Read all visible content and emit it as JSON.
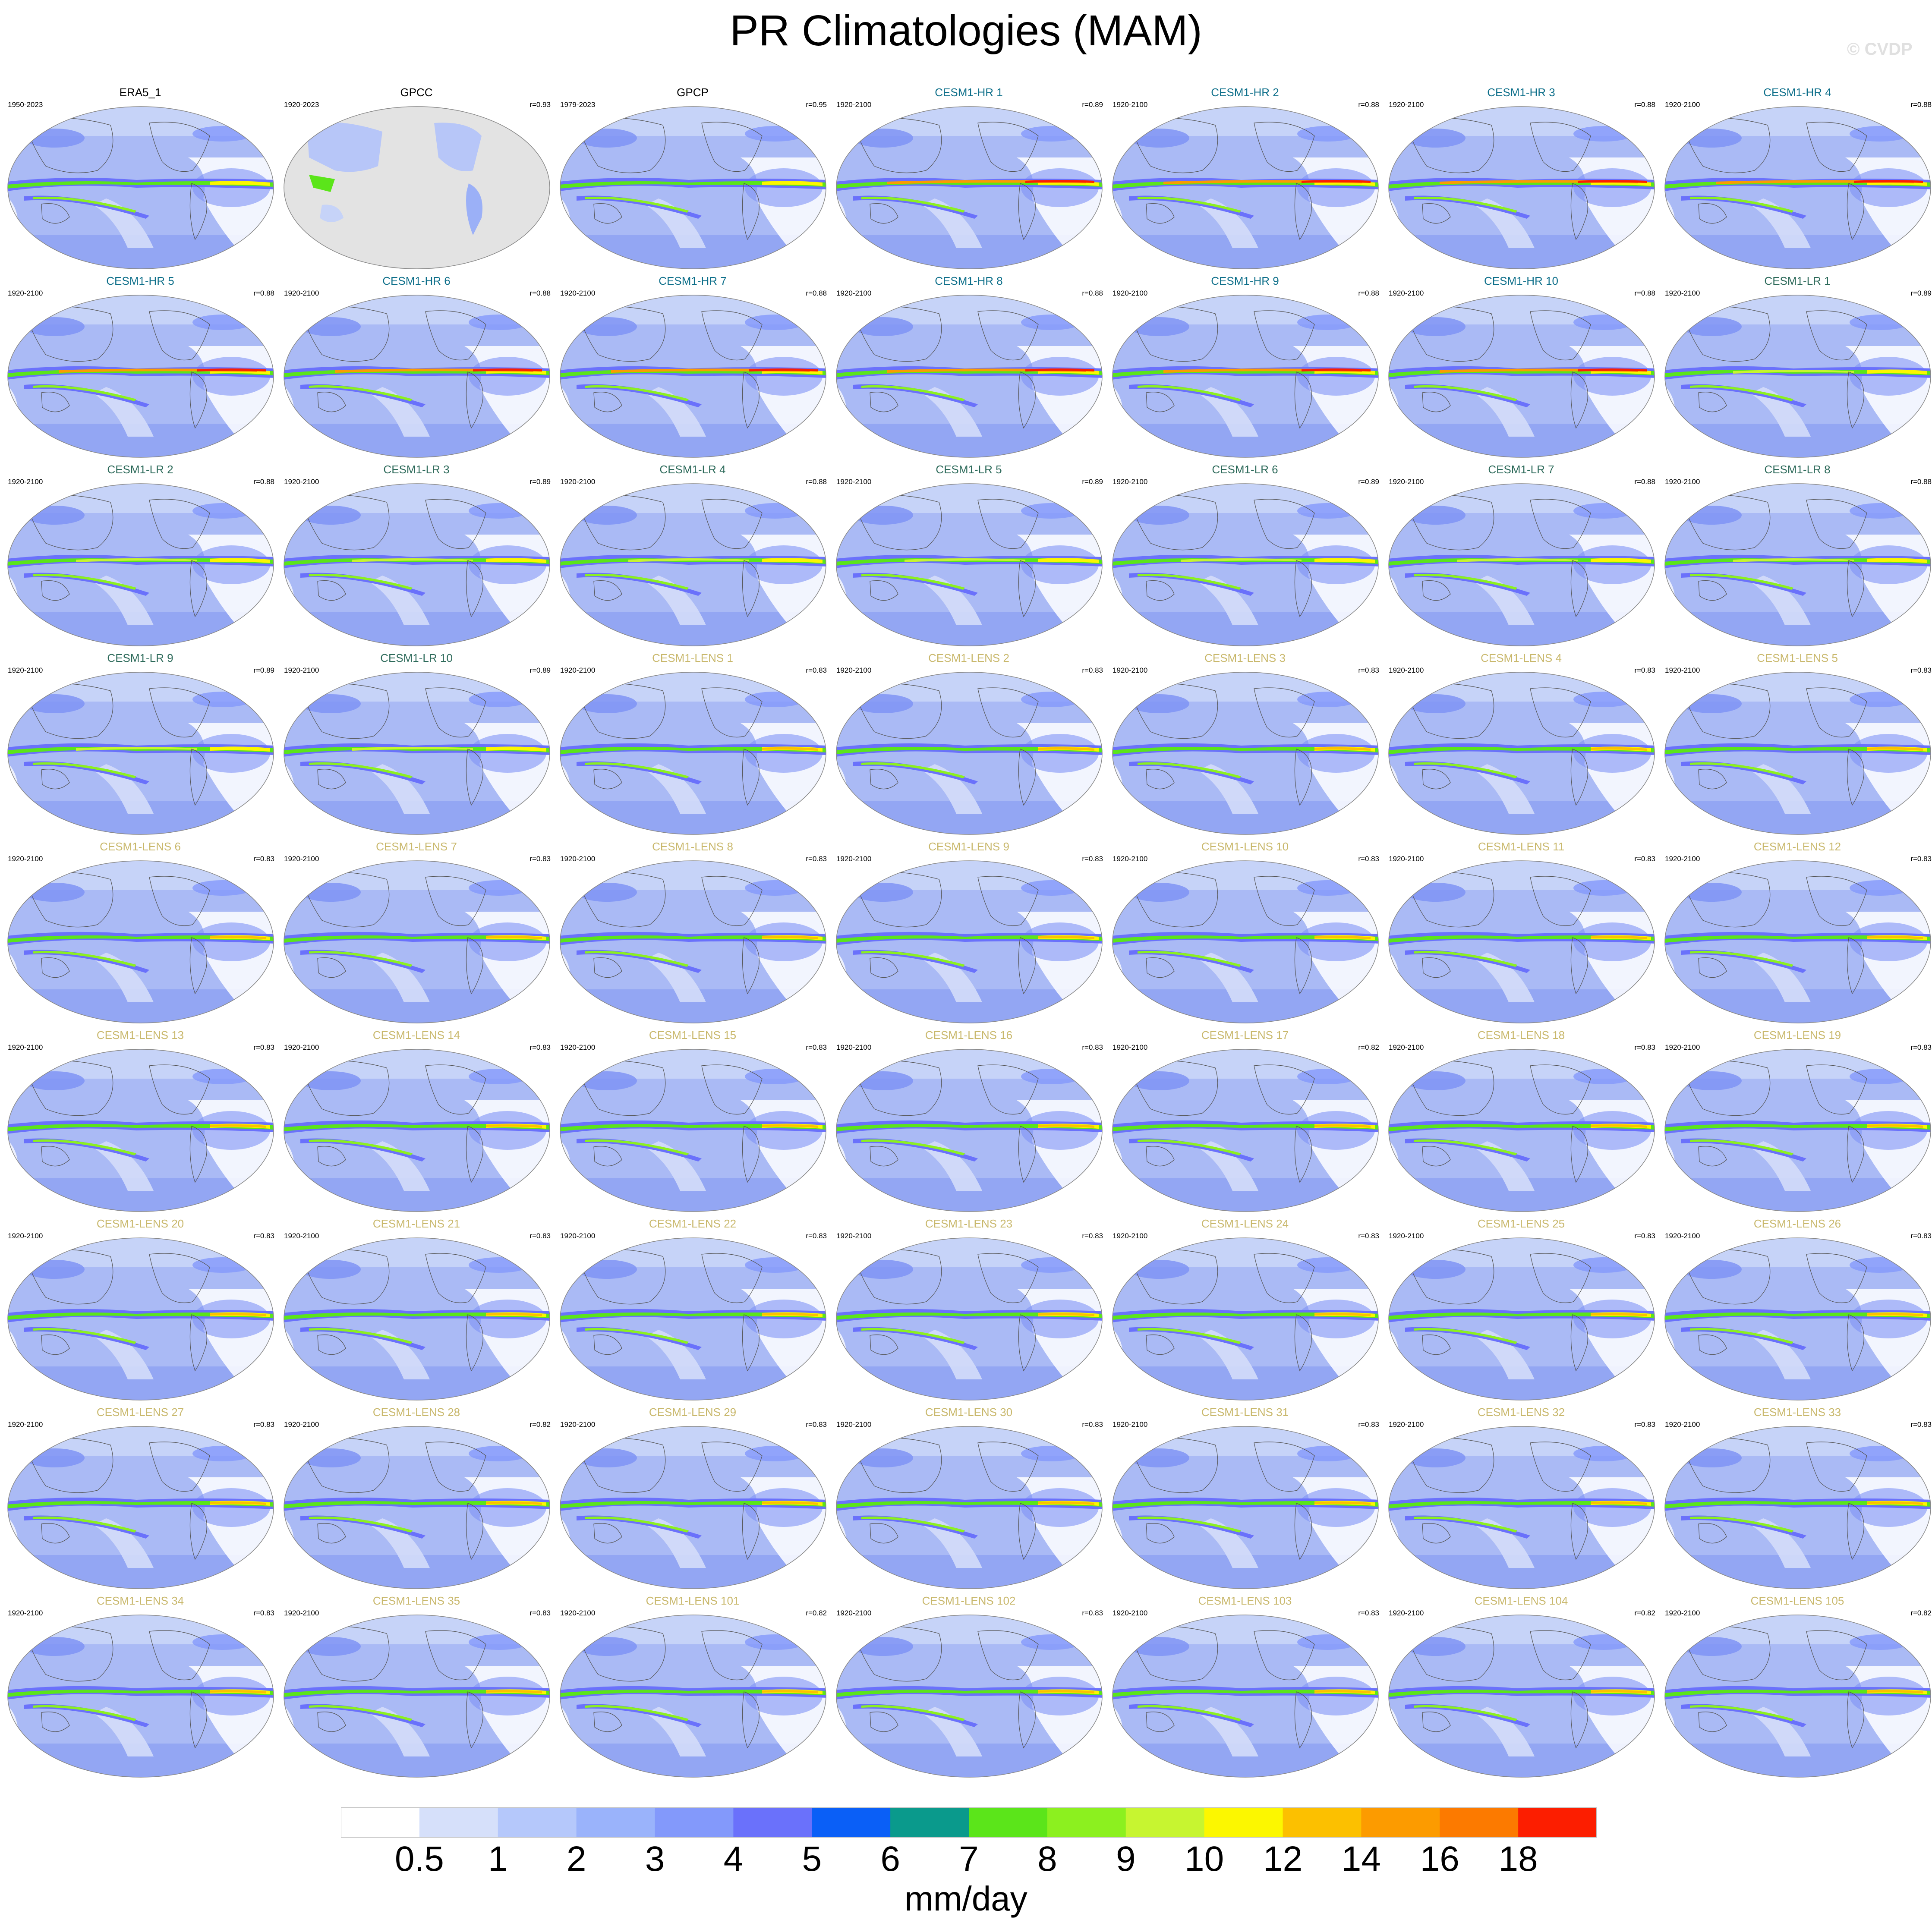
{
  "title": "PR Climatologies (MAM)",
  "credit": "© CVDP",
  "units": "mm/day",
  "chart_data": {
    "type": "heatmap",
    "title": "PR Climatologies (MAM)",
    "colorbar": {
      "label": "mm/day",
      "levels": [
        "0.5",
        "1",
        "2",
        "3",
        "4",
        "5",
        "6",
        "7",
        "8",
        "9",
        "10",
        "12",
        "14",
        "16",
        "18"
      ],
      "colors": [
        "#ffffff",
        "#d6e0fa",
        "#b5c8fb",
        "#9ab3fb",
        "#8399fb",
        "#6a71fb",
        "#0a5ff7",
        "#0a9a8c",
        "#5be51a",
        "#8cf01f",
        "#c7f530",
        "#fcf700",
        "#fcc000",
        "#fc9b00",
        "#fc7a00",
        "#fc1e00"
      ]
    },
    "panels": [
      {
        "name": "ERA5_1",
        "years": "1950-2023",
        "r": "",
        "group": "obs"
      },
      {
        "name": "GPCC",
        "years": "1920-2023",
        "r": "r=0.93",
        "group": "obs"
      },
      {
        "name": "GPCP",
        "years": "1979-2023",
        "r": "r=0.95",
        "group": "obs"
      },
      {
        "name": "CESM1-HR 1",
        "years": "1920-2100",
        "r": "r=0.89",
        "group": "hr"
      },
      {
        "name": "CESM1-HR 2",
        "years": "1920-2100",
        "r": "r=0.88",
        "group": "hr"
      },
      {
        "name": "CESM1-HR 3",
        "years": "1920-2100",
        "r": "r=0.88",
        "group": "hr"
      },
      {
        "name": "CESM1-HR 4",
        "years": "1920-2100",
        "r": "r=0.88",
        "group": "hr"
      },
      {
        "name": "CESM1-HR 5",
        "years": "1920-2100",
        "r": "r=0.88",
        "group": "hr"
      },
      {
        "name": "CESM1-HR 6",
        "years": "1920-2100",
        "r": "r=0.88",
        "group": "hr"
      },
      {
        "name": "CESM1-HR 7",
        "years": "1920-2100",
        "r": "r=0.88",
        "group": "hr"
      },
      {
        "name": "CESM1-HR 8",
        "years": "1920-2100",
        "r": "r=0.88",
        "group": "hr"
      },
      {
        "name": "CESM1-HR 9",
        "years": "1920-2100",
        "r": "r=0.88",
        "group": "hr"
      },
      {
        "name": "CESM1-HR 10",
        "years": "1920-2100",
        "r": "r=0.88",
        "group": "hr"
      },
      {
        "name": "CESM1-LR 1",
        "years": "1920-2100",
        "r": "r=0.89",
        "group": "lr"
      },
      {
        "name": "CESM1-LR 2",
        "years": "1920-2100",
        "r": "r=0.88",
        "group": "lr"
      },
      {
        "name": "CESM1-LR 3",
        "years": "1920-2100",
        "r": "r=0.89",
        "group": "lr"
      },
      {
        "name": "CESM1-LR 4",
        "years": "1920-2100",
        "r": "r=0.88",
        "group": "lr"
      },
      {
        "name": "CESM1-LR 5",
        "years": "1920-2100",
        "r": "r=0.89",
        "group": "lr"
      },
      {
        "name": "CESM1-LR 6",
        "years": "1920-2100",
        "r": "r=0.89",
        "group": "lr"
      },
      {
        "name": "CESM1-LR 7",
        "years": "1920-2100",
        "r": "r=0.88",
        "group": "lr"
      },
      {
        "name": "CESM1-LR 8",
        "years": "1920-2100",
        "r": "r=0.88",
        "group": "lr"
      },
      {
        "name": "CESM1-LR 9",
        "years": "1920-2100",
        "r": "r=0.89",
        "group": "lr"
      },
      {
        "name": "CESM1-LR 10",
        "years": "1920-2100",
        "r": "r=0.89",
        "group": "lr"
      },
      {
        "name": "CESM1-LENS 1",
        "years": "1920-2100",
        "r": "r=0.83",
        "group": "lens"
      },
      {
        "name": "CESM1-LENS 2",
        "years": "1920-2100",
        "r": "r=0.83",
        "group": "lens"
      },
      {
        "name": "CESM1-LENS 3",
        "years": "1920-2100",
        "r": "r=0.83",
        "group": "lens"
      },
      {
        "name": "CESM1-LENS 4",
        "years": "1920-2100",
        "r": "r=0.83",
        "group": "lens"
      },
      {
        "name": "CESM1-LENS 5",
        "years": "1920-2100",
        "r": "r=0.83",
        "group": "lens"
      },
      {
        "name": "CESM1-LENS 6",
        "years": "1920-2100",
        "r": "r=0.83",
        "group": "lens"
      },
      {
        "name": "CESM1-LENS 7",
        "years": "1920-2100",
        "r": "r=0.83",
        "group": "lens"
      },
      {
        "name": "CESM1-LENS 8",
        "years": "1920-2100",
        "r": "r=0.83",
        "group": "lens"
      },
      {
        "name": "CESM1-LENS 9",
        "years": "1920-2100",
        "r": "r=0.83",
        "group": "lens"
      },
      {
        "name": "CESM1-LENS 10",
        "years": "1920-2100",
        "r": "r=0.83",
        "group": "lens"
      },
      {
        "name": "CESM1-LENS 11",
        "years": "1920-2100",
        "r": "r=0.83",
        "group": "lens"
      },
      {
        "name": "CESM1-LENS 12",
        "years": "1920-2100",
        "r": "r=0.83",
        "group": "lens"
      },
      {
        "name": "CESM1-LENS 13",
        "years": "1920-2100",
        "r": "r=0.83",
        "group": "lens"
      },
      {
        "name": "CESM1-LENS 14",
        "years": "1920-2100",
        "r": "r=0.83",
        "group": "lens"
      },
      {
        "name": "CESM1-LENS 15",
        "years": "1920-2100",
        "r": "r=0.83",
        "group": "lens"
      },
      {
        "name": "CESM1-LENS 16",
        "years": "1920-2100",
        "r": "r=0.83",
        "group": "lens"
      },
      {
        "name": "CESM1-LENS 17",
        "years": "1920-2100",
        "r": "r=0.82",
        "group": "lens"
      },
      {
        "name": "CESM1-LENS 18",
        "years": "1920-2100",
        "r": "r=0.83",
        "group": "lens"
      },
      {
        "name": "CESM1-LENS 19",
        "years": "1920-2100",
        "r": "r=0.83",
        "group": "lens"
      },
      {
        "name": "CESM1-LENS 20",
        "years": "1920-2100",
        "r": "r=0.83",
        "group": "lens"
      },
      {
        "name": "CESM1-LENS 21",
        "years": "1920-2100",
        "r": "r=0.83",
        "group": "lens"
      },
      {
        "name": "CESM1-LENS 22",
        "years": "1920-2100",
        "r": "r=0.83",
        "group": "lens"
      },
      {
        "name": "CESM1-LENS 23",
        "years": "1920-2100",
        "r": "r=0.83",
        "group": "lens"
      },
      {
        "name": "CESM1-LENS 24",
        "years": "1920-2100",
        "r": "r=0.83",
        "group": "lens"
      },
      {
        "name": "CESM1-LENS 25",
        "years": "1920-2100",
        "r": "r=0.83",
        "group": "lens"
      },
      {
        "name": "CESM1-LENS 26",
        "years": "1920-2100",
        "r": "r=0.83",
        "group": "lens"
      },
      {
        "name": "CESM1-LENS 27",
        "years": "1920-2100",
        "r": "r=0.83",
        "group": "lens"
      },
      {
        "name": "CESM1-LENS 28",
        "years": "1920-2100",
        "r": "r=0.82",
        "group": "lens"
      },
      {
        "name": "CESM1-LENS 29",
        "years": "1920-2100",
        "r": "r=0.83",
        "group": "lens"
      },
      {
        "name": "CESM1-LENS 30",
        "years": "1920-2100",
        "r": "r=0.83",
        "group": "lens"
      },
      {
        "name": "CESM1-LENS 31",
        "years": "1920-2100",
        "r": "r=0.83",
        "group": "lens"
      },
      {
        "name": "CESM1-LENS 32",
        "years": "1920-2100",
        "r": "r=0.83",
        "group": "lens"
      },
      {
        "name": "CESM1-LENS 33",
        "years": "1920-2100",
        "r": "r=0.83",
        "group": "lens"
      },
      {
        "name": "CESM1-LENS 34",
        "years": "1920-2100",
        "r": "r=0.83",
        "group": "lens"
      },
      {
        "name": "CESM1-LENS 35",
        "years": "1920-2100",
        "r": "r=0.83",
        "group": "lens"
      },
      {
        "name": "CESM1-LENS 101",
        "years": "1920-2100",
        "r": "r=0.82",
        "group": "lens"
      },
      {
        "name": "CESM1-LENS 102",
        "years": "1920-2100",
        "r": "r=0.83",
        "group": "lens"
      },
      {
        "name": "CESM1-LENS 103",
        "years": "1920-2100",
        "r": "r=0.83",
        "group": "lens"
      },
      {
        "name": "CESM1-LENS 104",
        "years": "1920-2100",
        "r": "r=0.82",
        "group": "lens"
      },
      {
        "name": "CESM1-LENS 105",
        "years": "1920-2100",
        "r": "r=0.82",
        "group": "lens"
      }
    ],
    "group_colors": {
      "obs": "#000000",
      "hr": "#0e6f8a",
      "lr": "#2d6a5a",
      "lens": "#c9b86c"
    }
  }
}
